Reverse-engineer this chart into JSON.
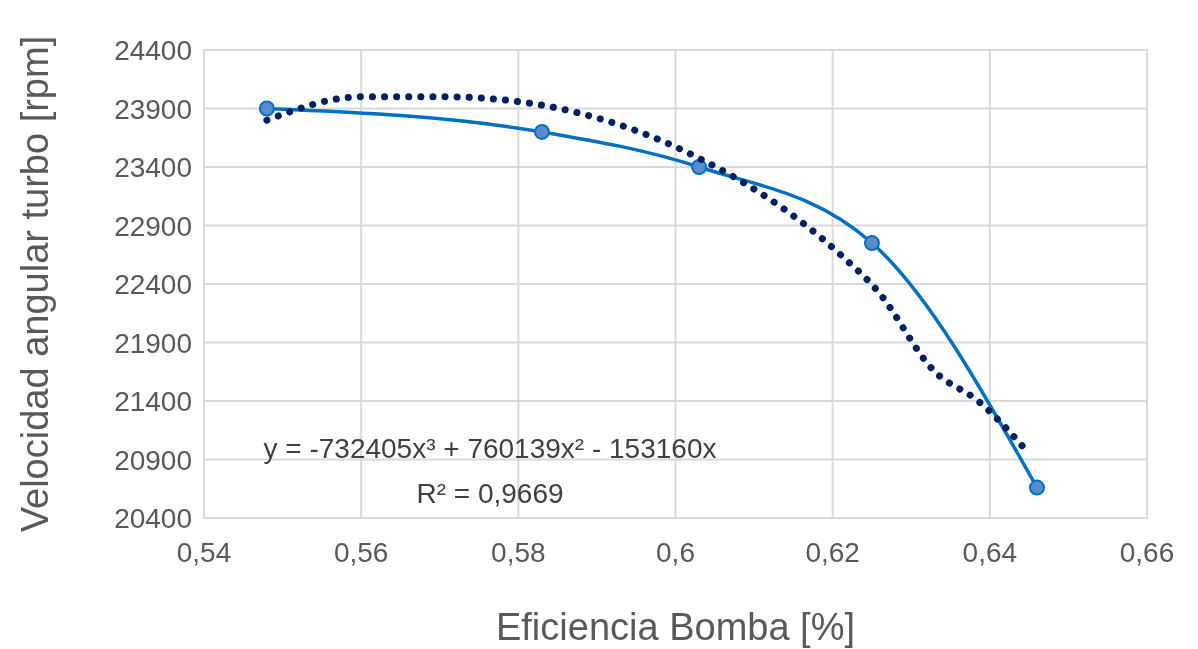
{
  "chart_data": {
    "type": "line",
    "xlabel": "Eficiencia Bomba [%]",
    "ylabel": "Velocidad angular turbo [rpm]",
    "series": [
      {
        "color": "#0070c0",
        "marker": "circle",
        "line_style": "solid",
        "x": [
          0.548,
          0.583,
          0.603,
          0.625,
          0.646
        ],
        "values": [
          23900,
          23700,
          23400,
          22750,
          20660
        ]
      },
      {
        "color": "#002060",
        "marker": "none",
        "line_style": "dotted",
        "x": [
          0.548,
          0.56,
          0.5705,
          0.581,
          0.591,
          0.6007,
          0.621,
          0.6256,
          0.633,
          0.6385,
          0.645
        ],
        "values": [
          23800,
          24000,
          24000,
          23950,
          23800,
          23550,
          22650,
          22350,
          21650,
          21400,
          20950
        ]
      }
    ],
    "xlim": [
      0.54,
      0.66
    ],
    "ylim": [
      20400,
      24400
    ],
    "xticks": [
      {
        "value": 0.54,
        "label": "0,54"
      },
      {
        "value": 0.56,
        "label": "0,56"
      },
      {
        "value": 0.58,
        "label": "0,58"
      },
      {
        "value": 0.6,
        "label": "0,6"
      },
      {
        "value": 0.62,
        "label": "0,62"
      },
      {
        "value": 0.64,
        "label": "0,64"
      },
      {
        "value": 0.66,
        "label": "0,66"
      }
    ],
    "yticks": [
      20400,
      20900,
      21400,
      21900,
      22400,
      22900,
      23400,
      23900,
      24400
    ],
    "grid": true,
    "annotations": [
      {
        "text": "y = -732405x³ + 760139x² - 153160x"
      },
      {
        "text": "R² = 0,9669"
      }
    ]
  }
}
